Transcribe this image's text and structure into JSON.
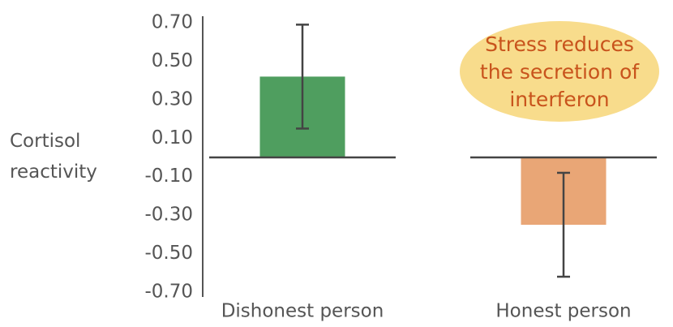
{
  "chart_data": {
    "type": "bar",
    "y_label": "Cortisol reactivity",
    "categories": [
      "Dishonest person",
      "Honest person"
    ],
    "values": [
      0.42,
      -0.35
    ],
    "errors": [
      0.27,
      0.27
    ],
    "colors": [
      "#4f9e5f",
      "#e9a676"
    ],
    "ylim": [
      -0.7,
      0.7
    ],
    "yticks": [
      {
        "value": 0.7,
        "label": "0.70"
      },
      {
        "value": 0.5,
        "label": "0.50"
      },
      {
        "value": 0.3,
        "label": "0.30"
      },
      {
        "value": 0.1,
        "label": "0.10"
      },
      {
        "value": -0.1,
        "label": "-0.10"
      },
      {
        "value": -0.3,
        "label": "-0.30"
      },
      {
        "value": -0.5,
        "label": "-0.50"
      },
      {
        "value": -0.7,
        "label": "-0.70"
      }
    ],
    "annotation": "Stress reduces the secretion of interferon"
  }
}
